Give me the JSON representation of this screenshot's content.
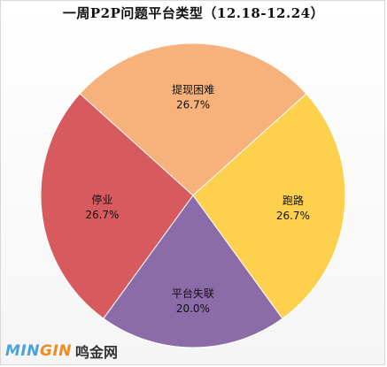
{
  "chart_data": {
    "type": "pie",
    "title": "一周P2P问题平台类型（12.18-12.24）",
    "slices": [
      {
        "name": "停业",
        "value": 26.7,
        "label": "26.7%",
        "color": "#d65a5e"
      },
      {
        "name": "提现困难",
        "value": 26.7,
        "label": "26.7%",
        "color": "#f6b27a"
      },
      {
        "name": "跑路",
        "value": 26.7,
        "label": "26.7%",
        "color": "#fdd14e"
      },
      {
        "name": "平台失联",
        "value": 20.0,
        "label": "20.0%",
        "color": "#8b6ba8"
      }
    ]
  },
  "watermark": {
    "logo_part1": "MIN",
    "logo_part2": "GIN",
    "site": "鸣金网"
  }
}
